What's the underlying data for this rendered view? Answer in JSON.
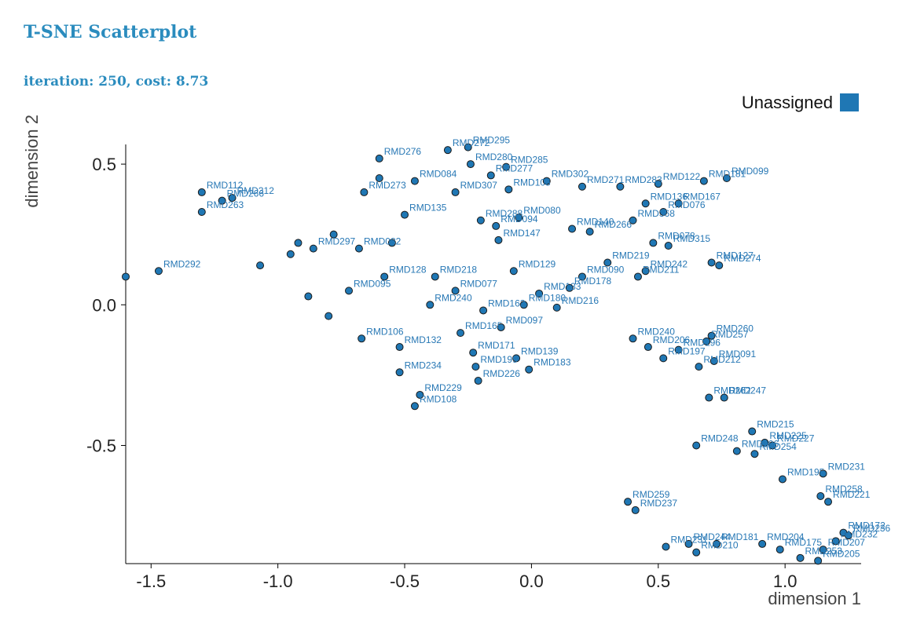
{
  "header": {
    "title": "T-SNE Scatterplot",
    "status": "iteration: 250, cost: 8.73"
  },
  "colors": {
    "accent": "#2b8cbe",
    "point": "#1f77b4",
    "label": "#2878b5"
  },
  "chart_data": {
    "type": "scatter",
    "xlabel": "dimension 1",
    "ylabel": "dimension 2",
    "xlim": [
      -1.6,
      1.3
    ],
    "ylim": [
      -0.92,
      0.57
    ],
    "xticks": [
      -1.5,
      -1.0,
      -0.5,
      0.0,
      0.5,
      1.0
    ],
    "xtick_labels": [
      "-1.5",
      "-1.0",
      "-0.5",
      "0.0",
      "0.5",
      "1.0"
    ],
    "yticks": [
      0.5,
      0.0,
      -0.5
    ],
    "ytick_labels": [
      "0.5",
      "0.0",
      "-0.5"
    ],
    "grid": false,
    "legend": {
      "label": "Unassigned",
      "color": "#1f77b4",
      "position": "top-right"
    },
    "series": [
      {
        "name": "Unassigned",
        "points": [
          {
            "x": -1.6,
            "y": 0.1,
            "label": ""
          },
          {
            "x": -1.47,
            "y": 0.12,
            "label": "RMD292"
          },
          {
            "x": -1.3,
            "y": 0.4,
            "label": "RMD112"
          },
          {
            "x": -1.3,
            "y": 0.33,
            "label": "RMD263"
          },
          {
            "x": -1.22,
            "y": 0.37,
            "label": "RMD266"
          },
          {
            "x": -1.18,
            "y": 0.38,
            "label": "RMD312"
          },
          {
            "x": -1.07,
            "y": 0.14,
            "label": ""
          },
          {
            "x": -0.95,
            "y": 0.18,
            "label": ""
          },
          {
            "x": -0.92,
            "y": 0.22,
            "label": ""
          },
          {
            "x": -0.88,
            "y": 0.03,
            "label": ""
          },
          {
            "x": -0.86,
            "y": 0.2,
            "label": "RMD297"
          },
          {
            "x": -0.8,
            "y": -0.04,
            "label": ""
          },
          {
            "x": -0.78,
            "y": 0.25,
            "label": ""
          },
          {
            "x": -0.72,
            "y": 0.05,
            "label": "RMD095"
          },
          {
            "x": -0.68,
            "y": 0.2,
            "label": "RMD082"
          },
          {
            "x": -0.67,
            "y": -0.12,
            "label": "RMD106"
          },
          {
            "x": -0.66,
            "y": 0.4,
            "label": "RMD273"
          },
          {
            "x": -0.6,
            "y": 0.52,
            "label": "RMD276"
          },
          {
            "x": -0.6,
            "y": 0.45,
            "label": ""
          },
          {
            "x": -0.58,
            "y": 0.1,
            "label": "RMD128"
          },
          {
            "x": -0.55,
            "y": 0.22,
            "label": ""
          },
          {
            "x": -0.52,
            "y": -0.15,
            "label": "RMD132"
          },
          {
            "x": -0.52,
            "y": -0.24,
            "label": "RMD234"
          },
          {
            "x": -0.5,
            "y": 0.32,
            "label": "RMD135"
          },
          {
            "x": -0.46,
            "y": 0.44,
            "label": "RMD084"
          },
          {
            "x": -0.46,
            "y": -0.36,
            "label": "RMD108"
          },
          {
            "x": -0.44,
            "y": -0.32,
            "label": "RMD229"
          },
          {
            "x": -0.4,
            "y": 0.0,
            "label": "RMD240"
          },
          {
            "x": -0.38,
            "y": 0.1,
            "label": "RMD218"
          },
          {
            "x": -0.33,
            "y": 0.55,
            "label": "RMD272"
          },
          {
            "x": -0.3,
            "y": 0.4,
            "label": "RMD307"
          },
          {
            "x": -0.3,
            "y": 0.05,
            "label": "RMD077"
          },
          {
            "x": -0.28,
            "y": -0.1,
            "label": "RMD165"
          },
          {
            "x": -0.25,
            "y": 0.56,
            "label": "RMD295"
          },
          {
            "x": -0.24,
            "y": 0.5,
            "label": "RMD280"
          },
          {
            "x": -0.23,
            "y": -0.17,
            "label": "RMD171"
          },
          {
            "x": -0.22,
            "y": -0.22,
            "label": "RMD199"
          },
          {
            "x": -0.21,
            "y": -0.27,
            "label": "RMD226"
          },
          {
            "x": -0.2,
            "y": 0.3,
            "label": "RMD288"
          },
          {
            "x": -0.19,
            "y": -0.02,
            "label": "RMD162"
          },
          {
            "x": -0.16,
            "y": 0.46,
            "label": "RMD277"
          },
          {
            "x": -0.14,
            "y": 0.28,
            "label": "RMD094"
          },
          {
            "x": -0.13,
            "y": 0.23,
            "label": "RMD147"
          },
          {
            "x": -0.12,
            "y": -0.08,
            "label": "RMD097"
          },
          {
            "x": -0.1,
            "y": 0.49,
            "label": "RMD285"
          },
          {
            "x": -0.09,
            "y": 0.41,
            "label": "RMD105"
          },
          {
            "x": -0.07,
            "y": 0.12,
            "label": "RMD129"
          },
          {
            "x": -0.06,
            "y": -0.19,
            "label": "RMD139"
          },
          {
            "x": -0.05,
            "y": 0.31,
            "label": "RMD080"
          },
          {
            "x": -0.03,
            "y": 0.0,
            "label": "RMD180"
          },
          {
            "x": -0.01,
            "y": -0.23,
            "label": "RMD183"
          },
          {
            "x": 0.03,
            "y": 0.04,
            "label": "RMD133"
          },
          {
            "x": 0.06,
            "y": 0.44,
            "label": "RMD302"
          },
          {
            "x": 0.1,
            "y": -0.01,
            "label": "RMD216"
          },
          {
            "x": 0.15,
            "y": 0.06,
            "label": "RMD178"
          },
          {
            "x": 0.16,
            "y": 0.27,
            "label": "RMD140"
          },
          {
            "x": 0.2,
            "y": 0.42,
            "label": "RMD271"
          },
          {
            "x": 0.2,
            "y": 0.1,
            "label": "RMD090"
          },
          {
            "x": 0.23,
            "y": 0.26,
            "label": "RMD266"
          },
          {
            "x": 0.3,
            "y": 0.15,
            "label": "RMD219"
          },
          {
            "x": 0.35,
            "y": 0.42,
            "label": "RMD283"
          },
          {
            "x": 0.4,
            "y": 0.3,
            "label": "RMD368"
          },
          {
            "x": 0.42,
            "y": 0.1,
            "label": "RMD211"
          },
          {
            "x": 0.45,
            "y": 0.36,
            "label": "RMD136"
          },
          {
            "x": 0.45,
            "y": 0.12,
            "label": "RMD242"
          },
          {
            "x": 0.48,
            "y": 0.22,
            "label": "RMD078"
          },
          {
            "x": 0.5,
            "y": 0.43,
            "label": "RMD122"
          },
          {
            "x": 0.52,
            "y": 0.33,
            "label": "RMD076"
          },
          {
            "x": 0.54,
            "y": 0.21,
            "label": "RMD315"
          },
          {
            "x": 0.58,
            "y": 0.36,
            "label": "RMD167"
          },
          {
            "x": 0.68,
            "y": 0.44,
            "label": "RMD181"
          },
          {
            "x": 0.71,
            "y": 0.15,
            "label": "RMD127"
          },
          {
            "x": 0.74,
            "y": 0.14,
            "label": "RMD274"
          },
          {
            "x": 0.77,
            "y": 0.45,
            "label": "RMD099"
          },
          {
            "x": 0.4,
            "y": -0.12,
            "label": "RMD240"
          },
          {
            "x": 0.46,
            "y": -0.15,
            "label": "RMD206"
          },
          {
            "x": 0.52,
            "y": -0.19,
            "label": "RMD197"
          },
          {
            "x": 0.58,
            "y": -0.16,
            "label": "RMD196"
          },
          {
            "x": 0.66,
            "y": -0.22,
            "label": "RMD212"
          },
          {
            "x": 0.69,
            "y": -0.13,
            "label": "RMD257"
          },
          {
            "x": 0.71,
            "y": -0.11,
            "label": "RMD260"
          },
          {
            "x": 0.72,
            "y": -0.2,
            "label": "RMD091"
          },
          {
            "x": 0.7,
            "y": -0.33,
            "label": "RMD262"
          },
          {
            "x": 0.76,
            "y": -0.33,
            "label": "RMD247"
          },
          {
            "x": 0.65,
            "y": -0.5,
            "label": "RMD248"
          },
          {
            "x": 0.81,
            "y": -0.52,
            "label": "RMD196"
          },
          {
            "x": 0.87,
            "y": -0.45,
            "label": "RMD215"
          },
          {
            "x": 0.88,
            "y": -0.53,
            "label": "RMD254"
          },
          {
            "x": 0.92,
            "y": -0.49,
            "label": "RMD225"
          },
          {
            "x": 0.95,
            "y": -0.5,
            "label": "RMD227"
          },
          {
            "x": 0.99,
            "y": -0.62,
            "label": "RMD195"
          },
          {
            "x": 1.15,
            "y": -0.6,
            "label": "RMD231"
          },
          {
            "x": 1.14,
            "y": -0.68,
            "label": "RMD258"
          },
          {
            "x": 1.17,
            "y": -0.7,
            "label": "RMD221"
          },
          {
            "x": 0.38,
            "y": -0.7,
            "label": "RMD259"
          },
          {
            "x": 0.41,
            "y": -0.73,
            "label": "RMD237"
          },
          {
            "x": 0.53,
            "y": -0.86,
            "label": "RMD231"
          },
          {
            "x": 0.62,
            "y": -0.85,
            "label": "RMD244"
          },
          {
            "x": 0.65,
            "y": -0.88,
            "label": "RMD210"
          },
          {
            "x": 0.73,
            "y": -0.85,
            "label": "RMD181"
          },
          {
            "x": 0.91,
            "y": -0.85,
            "label": "RMD204"
          },
          {
            "x": 0.98,
            "y": -0.87,
            "label": "RMD175"
          },
          {
            "x": 1.06,
            "y": -0.9,
            "label": "RMD253"
          },
          {
            "x": 1.15,
            "y": -0.87,
            "label": "RMD207"
          },
          {
            "x": 1.13,
            "y": -0.91,
            "label": "RMD205"
          },
          {
            "x": 1.2,
            "y": -0.84,
            "label": "RMD232"
          },
          {
            "x": 1.23,
            "y": -0.81,
            "label": "RMD172"
          },
          {
            "x": 1.25,
            "y": -0.82,
            "label": "RMD236"
          }
        ]
      }
    ]
  }
}
